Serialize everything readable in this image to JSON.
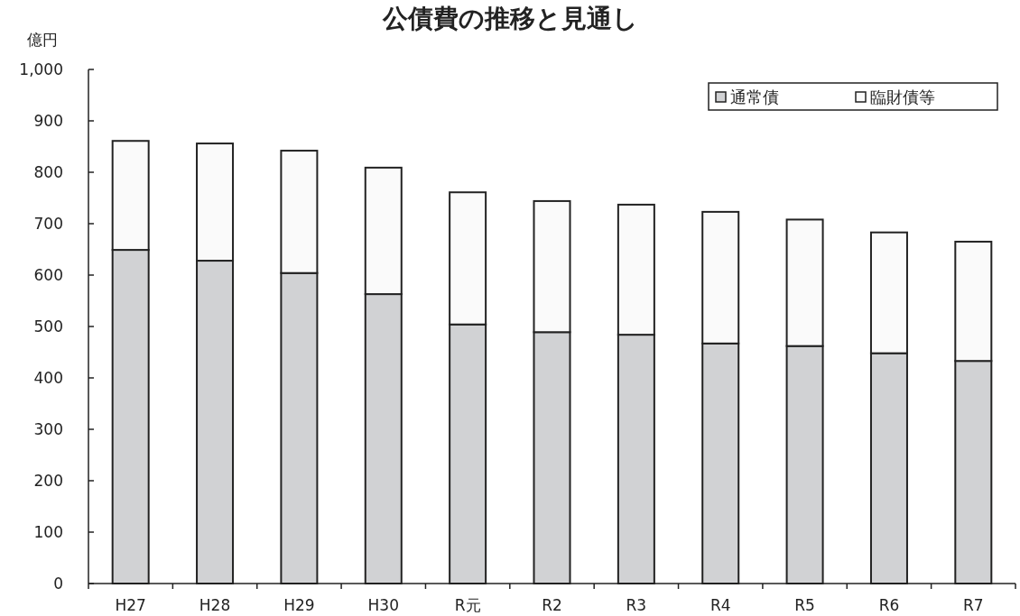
{
  "chart_data": {
    "type": "bar",
    "stacked": true,
    "title": "公債費の推移と見通し",
    "ylabel": "億円",
    "categories": [
      "H27",
      "H28",
      "H29",
      "H30",
      "R元",
      "R2",
      "R3",
      "R4",
      "R5",
      "R6",
      "R7"
    ],
    "series": [
      {
        "name": "通常債",
        "color": "#d1d2d4",
        "values": [
          649,
          628,
          604,
          563,
          504,
          489,
          484,
          467,
          462,
          448,
          433
        ]
      },
      {
        "name": "臨財債等",
        "color": "#fafafa",
        "values": [
          212,
          228,
          238,
          246,
          257,
          255,
          253,
          256,
          246,
          235,
          232
        ]
      }
    ],
    "ylim": [
      0,
      1000
    ],
    "yticks": [
      0,
      100,
      200,
      300,
      400,
      500,
      600,
      700,
      800,
      900,
      {
        "value": 1000,
        "label": "1,000"
      }
    ],
    "grid": false,
    "legend": "top right"
  }
}
